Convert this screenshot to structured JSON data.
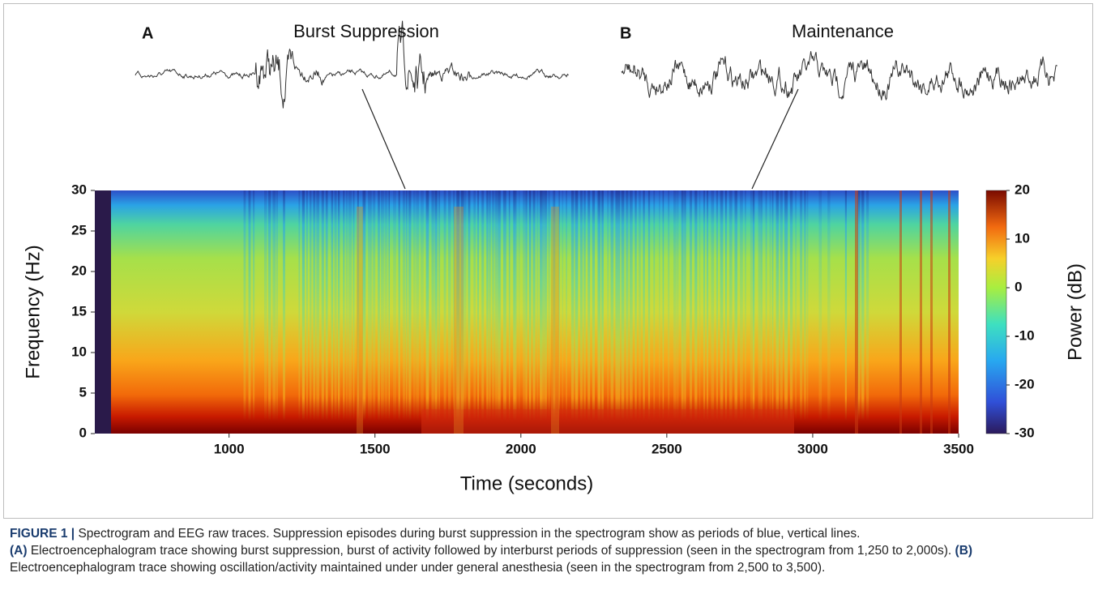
{
  "figure": {
    "panels": [
      {
        "label": "A",
        "title": "Burst Suppression"
      },
      {
        "label": "B",
        "title": "Maintenance"
      }
    ],
    "spectrogram": {
      "xlabel": "Time (seconds)",
      "ylabel": "Frequency (Hz)",
      "colorbar_label": "Power (dB)",
      "xlim": [
        540,
        3500
      ],
      "ylim": [
        0,
        30
      ],
      "xticks": [
        1000,
        1500,
        2000,
        2500,
        3000,
        3500
      ],
      "yticks": [
        0,
        5,
        10,
        15,
        20,
        25,
        30
      ],
      "clim": [
        -30,
        20
      ],
      "cticks": [
        -30,
        -20,
        -10,
        0,
        10,
        20
      ]
    },
    "caption": {
      "label": "FIGURE 1 |",
      "text": "Spectrogram and EEG raw traces. Suppression episodes during burst suppression in the spectrogram show as periods of blue, vertical lines.",
      "parts": [
        {
          "label": "(A)",
          "text": "Electroencephalogram trace showing burst suppression, burst of activity followed by interburst periods of suppression (seen in the spectrogram from 1,250 to 2,000s)."
        },
        {
          "label": "(B)",
          "text": "Electroencephalogram trace showing oscillation/activity maintained under under general anesthesia (seen in the spectrogram from 2,500 to 3,500)."
        }
      ]
    }
  }
}
